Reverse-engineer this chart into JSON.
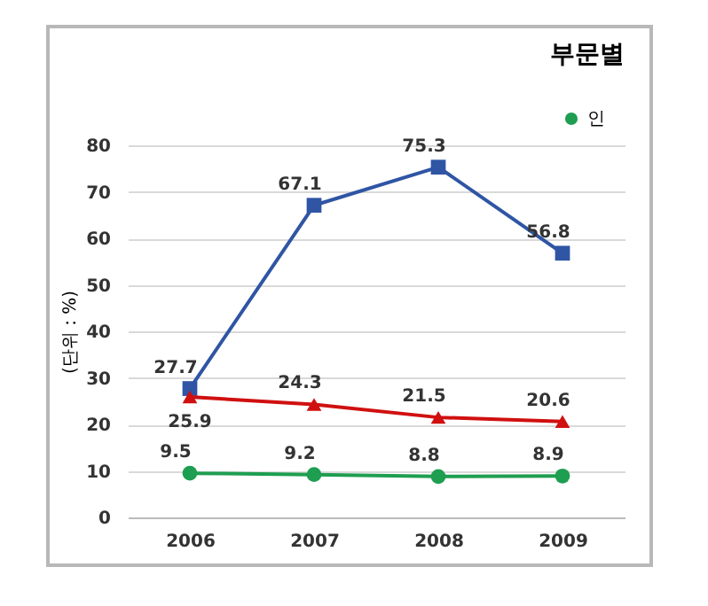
{
  "chart_data": {
    "type": "line",
    "title": "부문별",
    "ylabel": "(단위 : %)",
    "categories": [
      "2006",
      "2007",
      "2008",
      "2009"
    ],
    "series": [
      {
        "color": "#2f55a4",
        "marker": "square",
        "values": [
          27.7,
          67.1,
          75.3,
          56.8
        ]
      },
      {
        "color": "#d01010",
        "marker": "triangle",
        "values": [
          25.9,
          24.3,
          21.5,
          20.6
        ]
      },
      {
        "name": "인",
        "color": "#1e9e50",
        "marker": "circle",
        "values": [
          9.5,
          9.2,
          8.8,
          8.9
        ]
      }
    ],
    "ylim": [
      0,
      80
    ],
    "yticks": [
      0,
      10,
      20,
      30,
      40,
      50,
      60,
      70,
      80
    ],
    "grid": "y",
    "legend": "top right",
    "data_labels": true
  }
}
